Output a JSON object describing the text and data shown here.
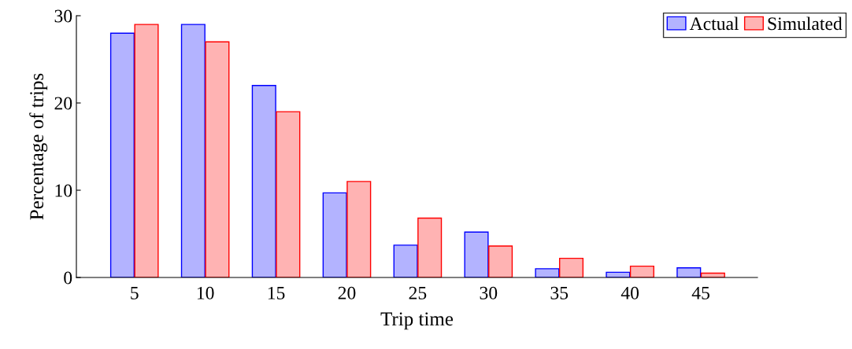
{
  "chart_data": {
    "type": "bar",
    "xlabel": "Trip time",
    "ylabel": "Percentage of trips",
    "categories": [
      "5",
      "10",
      "15",
      "20",
      "25",
      "30",
      "35",
      "40",
      "45"
    ],
    "series": [
      {
        "name": "Actual",
        "color": "#b3b3ff",
        "values": [
          28,
          29,
          22,
          9.7,
          3.7,
          5.2,
          1.0,
          0.6,
          1.1
        ]
      },
      {
        "name": "Simulated",
        "color": "#ffb3b3",
        "values": [
          29,
          27,
          19,
          11,
          6.8,
          3.6,
          2.2,
          1.3,
          0.5
        ]
      }
    ],
    "ylim": [
      0,
      30
    ],
    "yticks": [
      0,
      10,
      20,
      30
    ],
    "grid": false,
    "legend": "top right"
  }
}
